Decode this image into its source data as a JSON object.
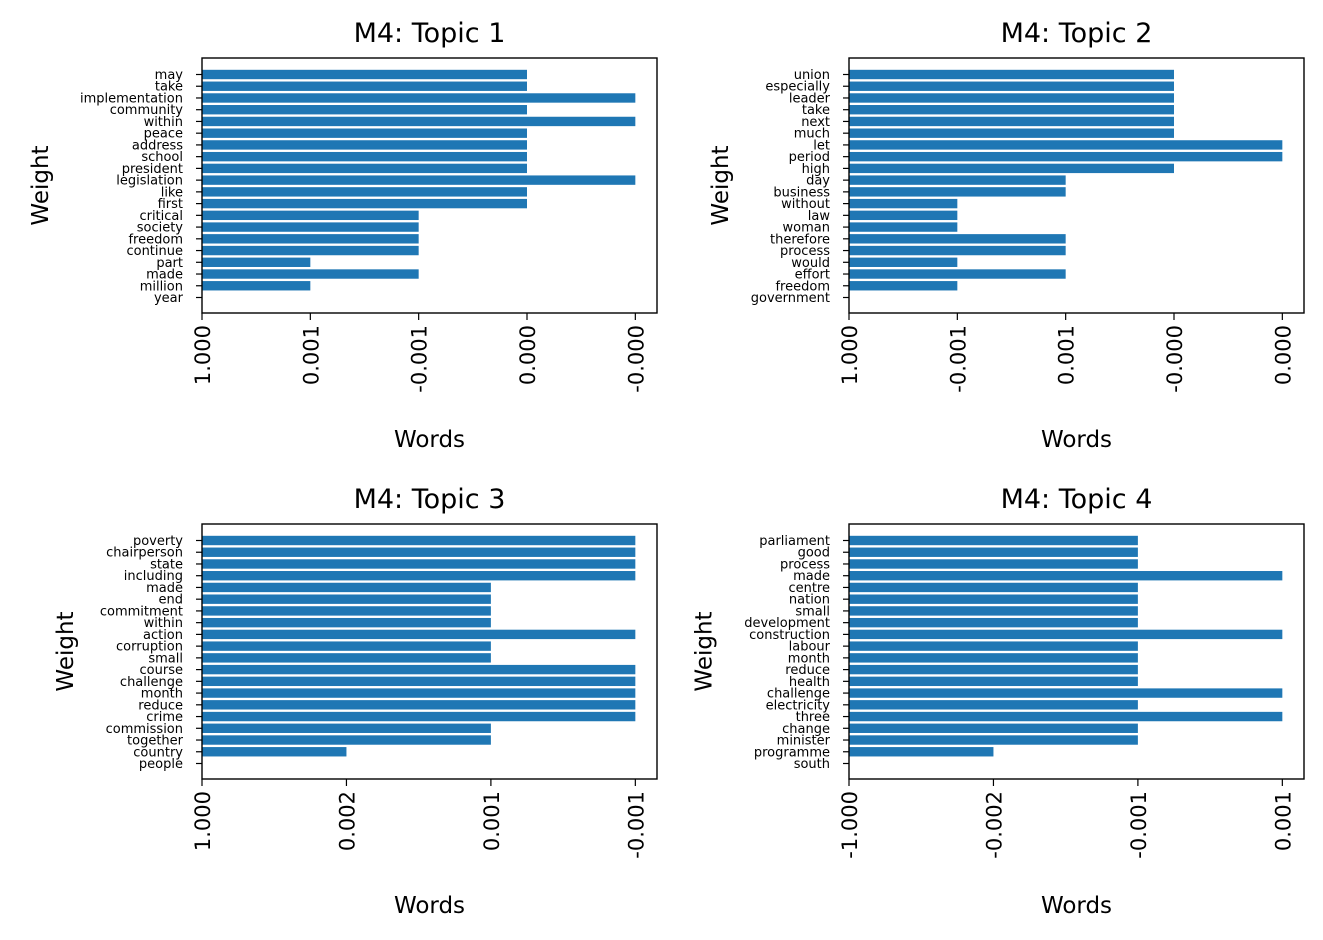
{
  "figure": {
    "background": "#ffffff",
    "bar_color": "#1f77b4"
  },
  "chart_data": [
    {
      "type": "bar",
      "orientation": "horizontal",
      "title": "M4: Topic 1",
      "xlabel": "Words",
      "ylabel": "Weight",
      "grid": false,
      "categories": [
        "may",
        "take",
        "implementation",
        "community",
        "within",
        "peace",
        "address",
        "school",
        "president",
        "legislation",
        "like",
        "first",
        "critical",
        "society",
        "freedom",
        "continue",
        "part",
        "made",
        "million",
        "year"
      ],
      "values": [
        3,
        3,
        4,
        3,
        4,
        3,
        3,
        3,
        3,
        4,
        3,
        3,
        2,
        2,
        2,
        2,
        1,
        2,
        1,
        0
      ],
      "xlim": [
        0,
        4.2
      ],
      "xticks": [
        0,
        1,
        2,
        3,
        4
      ],
      "xtick_labels": [
        "1.000",
        "0.001",
        "-0.001",
        "0.000",
        "-0.000"
      ]
    },
    {
      "type": "bar",
      "orientation": "horizontal",
      "title": "M4: Topic 2",
      "xlabel": "Words",
      "ylabel": "Weight",
      "grid": false,
      "categories": [
        "union",
        "especially",
        "leader",
        "take",
        "next",
        "much",
        "let",
        "period",
        "high",
        "day",
        "business",
        "without",
        "law",
        "woman",
        "therefore",
        "process",
        "would",
        "effort",
        "freedom",
        "government"
      ],
      "values": [
        3,
        3,
        3,
        3,
        3,
        3,
        4,
        4,
        3,
        2,
        2,
        1,
        1,
        1,
        2,
        2,
        1,
        2,
        1,
        0
      ],
      "xlim": [
        0,
        4.2
      ],
      "xticks": [
        0,
        1,
        2,
        3,
        4
      ],
      "xtick_labels": [
        "1.000",
        "-0.001",
        "0.001",
        "-0.000",
        "0.000"
      ]
    },
    {
      "type": "bar",
      "orientation": "horizontal",
      "title": "M4: Topic 3",
      "xlabel": "Words",
      "ylabel": "Weight",
      "grid": false,
      "categories": [
        "poverty",
        "chairperson",
        "state",
        "including",
        "made",
        "end",
        "commitment",
        "within",
        "action",
        "corruption",
        "small",
        "course",
        "challenge",
        "month",
        "reduce",
        "crime",
        "commission",
        "together",
        "country",
        "people"
      ],
      "values": [
        3,
        3,
        3,
        3,
        2,
        2,
        2,
        2,
        3,
        2,
        2,
        3,
        3,
        3,
        3,
        3,
        2,
        2,
        1,
        0
      ],
      "xlim": [
        0,
        3.15
      ],
      "xticks": [
        0,
        1,
        2,
        3
      ],
      "xtick_labels": [
        "1.000",
        "0.002",
        "0.001",
        "-0.001"
      ]
    },
    {
      "type": "bar",
      "orientation": "horizontal",
      "title": "M4: Topic 4",
      "xlabel": "Words",
      "ylabel": "Weight",
      "grid": false,
      "categories": [
        "parliament",
        "good",
        "process",
        "made",
        "centre",
        "nation",
        "small",
        "development",
        "construction",
        "labour",
        "month",
        "reduce",
        "health",
        "challenge",
        "electricity",
        "three",
        "change",
        "minister",
        "programme",
        "south"
      ],
      "values": [
        2,
        2,
        2,
        3,
        2,
        2,
        2,
        2,
        3,
        2,
        2,
        2,
        2,
        3,
        2,
        3,
        2,
        2,
        1,
        0
      ],
      "xlim": [
        0,
        3.15
      ],
      "xticks": [
        0,
        1,
        2,
        3
      ],
      "xtick_labels": [
        "-1.000",
        "-0.002",
        "-0.001",
        "0.001"
      ]
    }
  ]
}
